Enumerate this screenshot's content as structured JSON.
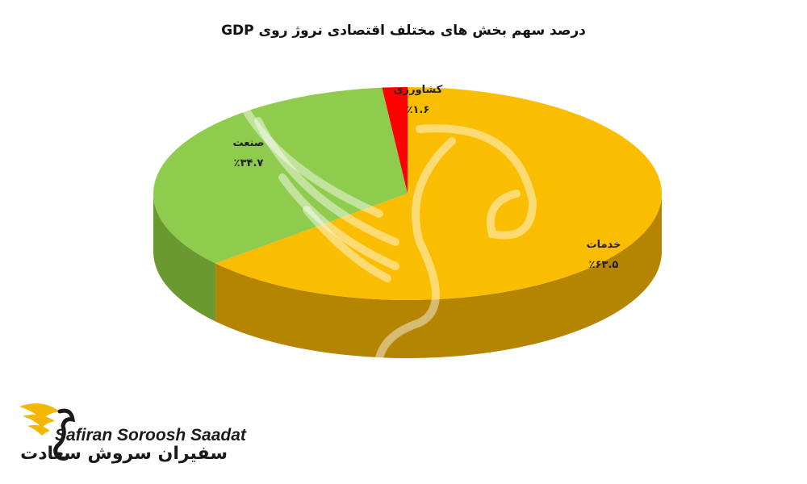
{
  "chart_data": {
    "type": "pie",
    "title": "درصد سهم بخش های مختلف اقتصادی نروژ روی GDP",
    "categories": [
      "کشاورزی",
      "صنعت",
      "خدمات"
    ],
    "values": [
      1.6,
      34.7,
      63.5
    ],
    "value_labels": [
      "٪۱.۶",
      "٪۳۴.۷",
      "٪۶۳.۵"
    ],
    "colors": [
      "#ff0000",
      "#8fcc4e",
      "#fbbd00"
    ],
    "side_colors": [
      "#8b0000",
      "#6a9a2f",
      "#b58400"
    ],
    "style": "3d-exploded-pie",
    "legend": "none"
  },
  "logo": {
    "latin": "Safiran Soroosh Saadat",
    "persian": "سفیران سروش سعادت"
  }
}
